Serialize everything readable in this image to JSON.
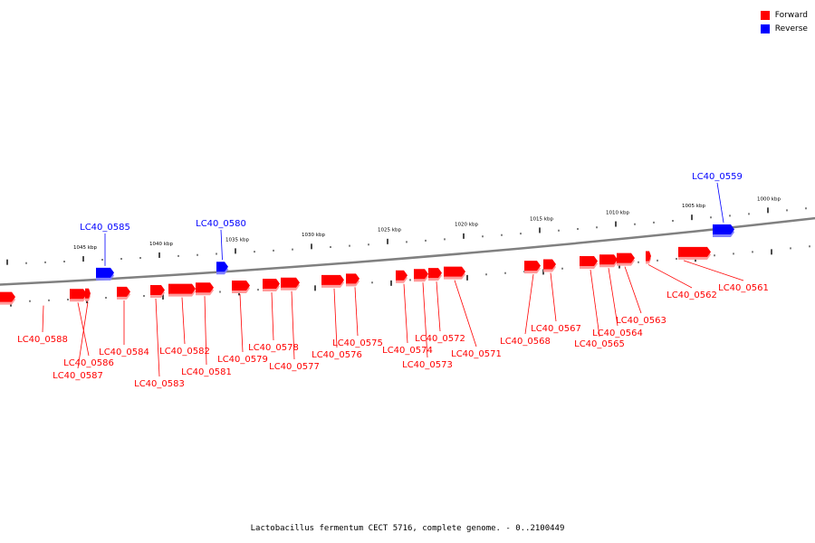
{
  "legend": {
    "forward_label": "Forward",
    "reverse_label": "Reverse",
    "forward_color": "#ff0000",
    "reverse_color": "#0000ff"
  },
  "caption": "Lactobacillus fermentum CECT 5716, complete genome. - 0..2100449",
  "backbone_color": "#808080",
  "scale_labels": [
    "1045 kbp",
    "1040 kbp",
    "1035 kbp",
    "1030 kbp",
    "1025 kbp",
    "1020 kbp",
    "1015 kbp",
    "1010 kbp",
    "1005 kbp",
    "1000 kbp"
  ],
  "genes": [
    {
      "id": "LC40_0585",
      "strand": "reverse"
    },
    {
      "id": "LC40_0580",
      "strand": "reverse"
    },
    {
      "id": "LC40_0559",
      "strand": "reverse"
    },
    {
      "id": "LC40_0588",
      "strand": "forward"
    },
    {
      "id": "LC40_0586",
      "strand": "forward"
    },
    {
      "id": "LC40_0587",
      "strand": "forward"
    },
    {
      "id": "LC40_0584",
      "strand": "forward"
    },
    {
      "id": "LC40_0583",
      "strand": "forward"
    },
    {
      "id": "LC40_0582",
      "strand": "forward"
    },
    {
      "id": "LC40_0581",
      "strand": "forward"
    },
    {
      "id": "LC40_0579",
      "strand": "forward"
    },
    {
      "id": "LC40_0578",
      "strand": "forward"
    },
    {
      "id": "LC40_0577",
      "strand": "forward"
    },
    {
      "id": "LC40_0576",
      "strand": "forward"
    },
    {
      "id": "LC40_0575",
      "strand": "forward"
    },
    {
      "id": "LC40_0574",
      "strand": "forward"
    },
    {
      "id": "LC40_0573",
      "strand": "forward"
    },
    {
      "id": "LC40_0572",
      "strand": "forward"
    },
    {
      "id": "LC40_0571",
      "strand": "forward"
    },
    {
      "id": "LC40_0568",
      "strand": "forward"
    },
    {
      "id": "LC40_0567",
      "strand": "forward"
    },
    {
      "id": "LC40_0565",
      "strand": "forward"
    },
    {
      "id": "LC40_0564",
      "strand": "forward"
    },
    {
      "id": "LC40_0563",
      "strand": "forward"
    },
    {
      "id": "LC40_0562",
      "strand": "forward"
    },
    {
      "id": "LC40_0561",
      "strand": "forward"
    }
  ]
}
